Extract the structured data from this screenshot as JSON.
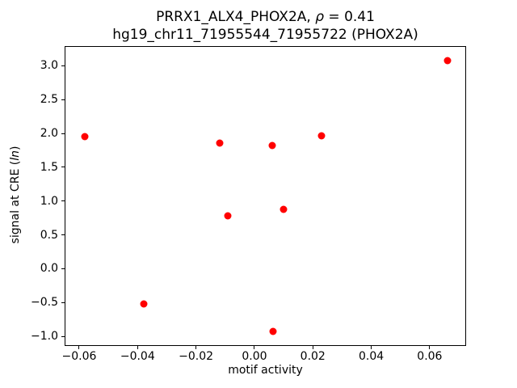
{
  "chart_data": {
    "type": "scatter",
    "title": "PRRX1_ALX4_PHOX2A, ρ = 0.41\nhg19_chr11_71955544_71955722 (PHOX2A)",
    "title_line1": {
      "prefix": "PRRX1_ALX4_PHOX2A, ",
      "symbol": "ρ",
      "suffix": " = 0.41"
    },
    "title_line2": "hg19_chr11_71955544_71955722 (PHOX2A)",
    "xlabel": "motif activity",
    "ylabel": {
      "prefix": "signal at CRE (",
      "italic": "ln",
      "suffix": ")"
    },
    "marker_color": "#ff0000",
    "grid": false,
    "legend": null,
    "xlim": [
      -0.0647,
      0.0722
    ],
    "ylim": [
      -1.13,
      3.28
    ],
    "xticks": [
      {
        "v": -0.06,
        "label": "−0.06"
      },
      {
        "v": -0.04,
        "label": "−0.04"
      },
      {
        "v": -0.02,
        "label": "−0.02"
      },
      {
        "v": 0.0,
        "label": "0.00"
      },
      {
        "v": 0.02,
        "label": "0.02"
      },
      {
        "v": 0.04,
        "label": "0.04"
      },
      {
        "v": 0.06,
        "label": "0.06"
      }
    ],
    "yticks": [
      {
        "v": -1.0,
        "label": "−1.0"
      },
      {
        "v": -0.5,
        "label": "−0.5"
      },
      {
        "v": 0.0,
        "label": "0.0"
      },
      {
        "v": 0.5,
        "label": "0.5"
      },
      {
        "v": 1.0,
        "label": "1.0"
      },
      {
        "v": 1.5,
        "label": "1.5"
      },
      {
        "v": 2.0,
        "label": "2.0"
      },
      {
        "v": 2.5,
        "label": "2.5"
      },
      {
        "v": 3.0,
        "label": "3.0"
      }
    ],
    "points": [
      {
        "x": -0.058,
        "y": 1.95
      },
      {
        "x": -0.038,
        "y": -0.52
      },
      {
        "x": -0.012,
        "y": 1.86
      },
      {
        "x": -0.009,
        "y": 0.78
      },
      {
        "x": 0.006,
        "y": 1.82
      },
      {
        "x": 0.0065,
        "y": -0.93
      },
      {
        "x": 0.01,
        "y": 0.88
      },
      {
        "x": 0.023,
        "y": 1.96
      },
      {
        "x": 0.066,
        "y": 3.08
      }
    ]
  }
}
